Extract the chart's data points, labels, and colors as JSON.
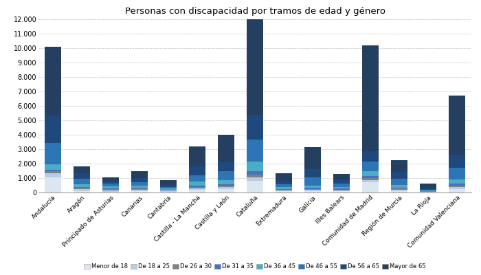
{
  "title": "Personas con discapacidad por tramos de edad y género",
  "categories": [
    "Andalucía",
    "Aragón",
    "Principado de Asturias",
    "Canarias",
    "Cantabria",
    "Castilla - La Mancha",
    "Castilla y León",
    "Cataluña",
    "Extremadura",
    "Galicia",
    "Illes Balears",
    "Comunidad de Madrid",
    "Región de Murcia",
    "La Rioja",
    "Comunidad Valenciana"
  ],
  "age_groups": [
    "Menor de 18",
    "De 18 a 25",
    "De 26 a 30",
    "De 31 a 35",
    "De 36 a 45",
    "De 46 a 55",
    "De 56 a 65",
    "Mayor de 65"
  ],
  "colors": [
    "#dce6f1",
    "#b8cce4",
    "#808080",
    "#4472c4",
    "#4bacc6",
    "#2e75b6",
    "#1f497d",
    "#243f60"
  ],
  "data": {
    "Menor de 18": [
      1050,
      90,
      70,
      110,
      70,
      170,
      230,
      800,
      75,
      90,
      80,
      700,
      110,
      35,
      220
    ],
    "De 18 a 25": [
      280,
      130,
      90,
      90,
      55,
      130,
      140,
      270,
      75,
      90,
      75,
      180,
      90,
      25,
      160
    ],
    "De 26 a 30": [
      130,
      90,
      70,
      70,
      35,
      90,
      90,
      180,
      55,
      70,
      55,
      130,
      70,
      18,
      110
    ],
    "De 31 a 35": [
      130,
      90,
      60,
      60,
      35,
      90,
      90,
      230,
      55,
      70,
      55,
      130,
      70,
      18,
      110
    ],
    "De 36 a 45": [
      350,
      180,
      130,
      130,
      70,
      270,
      320,
      640,
      110,
      180,
      130,
      360,
      180,
      45,
      310
    ],
    "De 46 a 55": [
      1500,
      360,
      180,
      270,
      130,
      450,
      630,
      1550,
      180,
      540,
      220,
      630,
      450,
      70,
      810
    ],
    "De 56 a 65": [
      1900,
      400,
      180,
      270,
      130,
      630,
      630,
      1720,
      225,
      585,
      225,
      720,
      450,
      70,
      900
    ],
    "Mayor de 65": [
      4760,
      470,
      290,
      490,
      340,
      1380,
      1860,
      6610,
      555,
      1525,
      440,
      7350,
      830,
      360,
      4080
    ]
  },
  "ylim": [
    0,
    12000
  ],
  "yticks": [
    0,
    1000,
    2000,
    3000,
    4000,
    5000,
    6000,
    7000,
    8000,
    9000,
    10000,
    11000,
    12000
  ],
  "figsize": [
    7.0,
    4.0
  ],
  "dpi": 100,
  "bg_color": "#ffffff"
}
